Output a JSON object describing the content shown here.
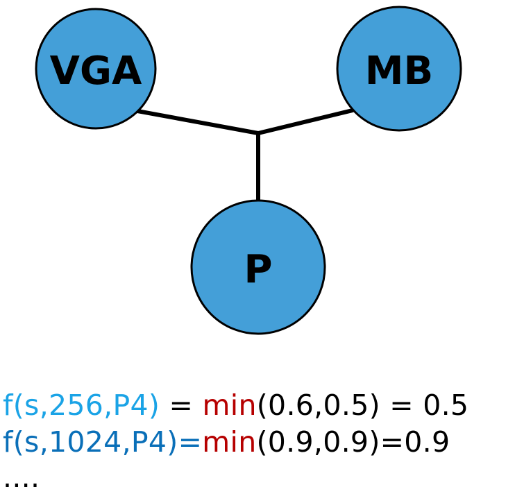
{
  "diagram": {
    "nodes": [
      {
        "id": "vga",
        "label": "VGA"
      },
      {
        "id": "mb",
        "label": "MB"
      },
      {
        "id": "p",
        "label": "P"
      }
    ],
    "edges": [
      {
        "from": "vga",
        "to": "junction"
      },
      {
        "from": "mb",
        "to": "junction"
      },
      {
        "from": "p",
        "to": "junction"
      }
    ],
    "colors": {
      "node_fill": "#449fd8",
      "node_stroke": "#000000",
      "edge": "#000000"
    }
  },
  "formulas": {
    "line1": {
      "func": "f(s,256,P4)",
      "eq1": " = ",
      "min": "min",
      "args": "(0.6,0.5) = 0.5"
    },
    "line2": {
      "func": "f(s,1024,P4)",
      "eq1": "=",
      "min": "min",
      "args": "(0.9,0.9)=0.9"
    },
    "line3": "....",
    "colors": {
      "func_line1": "#1aa3e6",
      "func_line2": "#0a6fb8",
      "min": "#b60000",
      "text": "#000000"
    }
  }
}
